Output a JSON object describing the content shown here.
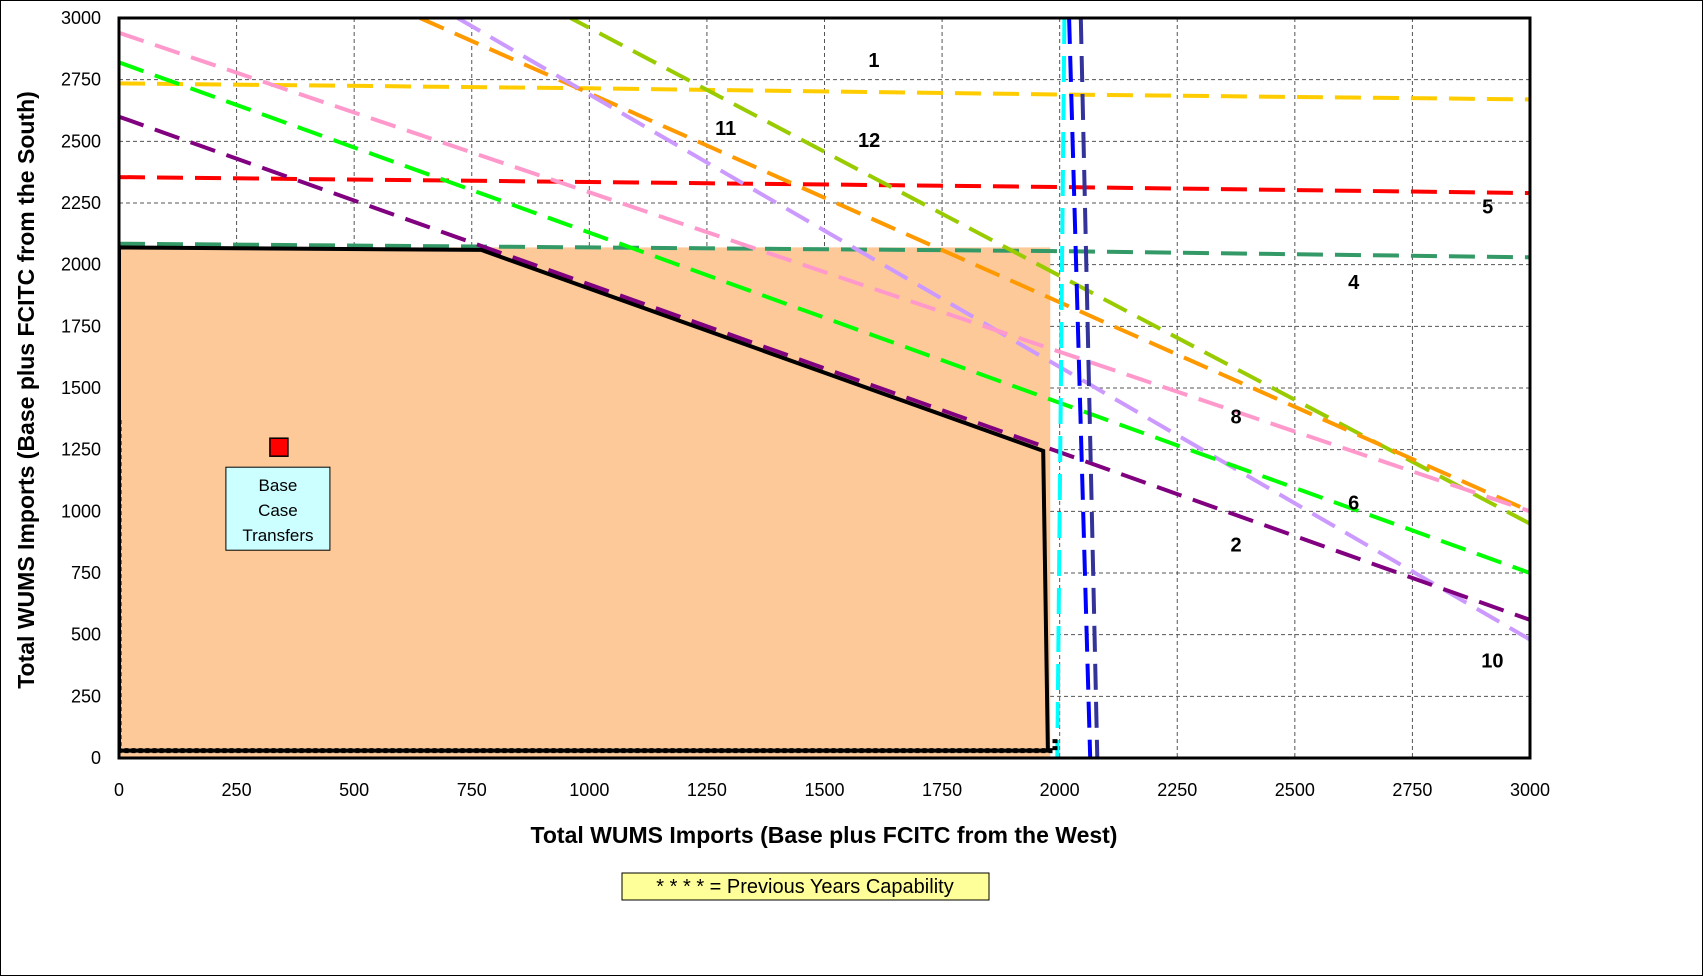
{
  "chart_data": {
    "type": "line",
    "title": "",
    "xlabel": "Total WUMS Imports (Base plus FCITC from the West)",
    "ylabel": "Total WUMS Imports (Base plus FCITC from the South)",
    "xlim": [
      0,
      3000
    ],
    "ylim": [
      0,
      3000
    ],
    "xticks": [
      0,
      250,
      500,
      750,
      1000,
      1250,
      1500,
      1750,
      2000,
      2250,
      2500,
      2750,
      3000
    ],
    "yticks": [
      0,
      250,
      500,
      750,
      1000,
      1250,
      1500,
      1750,
      2000,
      2250,
      2500,
      2750,
      3000
    ],
    "grid": true,
    "region": {
      "fill": "#fdc999",
      "x_max": 1980,
      "y_max": 2070
    },
    "capability_boundary": {
      "color": "#000000",
      "points": [
        [
          0,
          30
        ],
        [
          0,
          2070
        ],
        [
          770,
          2060
        ],
        [
          1965,
          1245
        ],
        [
          1975,
          30
        ],
        [
          0,
          30
        ]
      ]
    },
    "previous_capability": {
      "color": "#000000",
      "points": [
        [
          0,
          1370
        ],
        [
          0,
          30
        ],
        [
          1990,
          30
        ],
        [
          1990,
          80
        ]
      ]
    },
    "base_case": {
      "x": 340,
      "y": 1260,
      "color": "#ff0000",
      "label": "Base Case Transfers",
      "label_fill": "#ccffff"
    },
    "series": [
      {
        "label": "1",
        "color": "#ffcc00",
        "points": [
          [
            0,
            2735
          ],
          [
            1000,
            2715
          ],
          [
            2000,
            2690
          ],
          [
            3000,
            2670
          ]
        ]
      },
      {
        "label": "5",
        "color": "#ff0000",
        "points": [
          [
            0,
            2355
          ],
          [
            1000,
            2335
          ],
          [
            2000,
            2315
          ],
          [
            3000,
            2290
          ]
        ]
      },
      {
        "label": "4",
        "color": "#339966",
        "points": [
          [
            0,
            2085
          ],
          [
            1000,
            2070
          ],
          [
            2000,
            2055
          ],
          [
            3000,
            2030
          ]
        ]
      },
      {
        "label": "12",
        "color": "#99cc00",
        "points": [
          [
            950,
            3010
          ],
          [
            3000,
            950
          ]
        ]
      },
      {
        "label": "11",
        "color": "#ff9900",
        "points": [
          [
            640,
            3000
          ],
          [
            3000,
            1000
          ]
        ]
      },
      {
        "label": "",
        "color": "#cc99ff",
        "points": [
          [
            720,
            3000
          ],
          [
            3000,
            480
          ]
        ]
      },
      {
        "label": "8",
        "color": "#ff99cc",
        "points": [
          [
            0,
            2940
          ],
          [
            3000,
            1000
          ]
        ]
      },
      {
        "label": "6",
        "color": "#00ff00",
        "points": [
          [
            0,
            2820
          ],
          [
            3000,
            750
          ]
        ]
      },
      {
        "label": "2",
        "color": "#800080",
        "points": [
          [
            0,
            2600
          ],
          [
            3000,
            560
          ]
        ]
      },
      {
        "label": "",
        "color": "#00ffff",
        "points": [
          [
            2010,
            3000
          ],
          [
            1995,
            0
          ]
        ]
      },
      {
        "label": "",
        "color": "#0000ff",
        "points": [
          [
            2020,
            3000
          ],
          [
            2065,
            0
          ]
        ]
      },
      {
        "label": "",
        "color": "#333399",
        "points": [
          [
            2045,
            3000
          ],
          [
            2080,
            0
          ]
        ]
      }
    ],
    "line_labels": [
      {
        "text": "1",
        "x": 1605,
        "y": 2830
      },
      {
        "text": "11",
        "x": 1290,
        "y": 2555
      },
      {
        "text": "12",
        "x": 1595,
        "y": 2505
      },
      {
        "text": "5",
        "x": 2910,
        "y": 2235
      },
      {
        "text": "4",
        "x": 2625,
        "y": 1930
      },
      {
        "text": "8",
        "x": 2375,
        "y": 1385
      },
      {
        "text": "6",
        "x": 2625,
        "y": 1035
      },
      {
        "text": "2",
        "x": 2375,
        "y": 865
      },
      {
        "text": "10",
        "x": 2920,
        "y": 395
      }
    ],
    "legend_note": "* * * * = Previous Years Capability",
    "legend_fill": "#ffff99"
  }
}
